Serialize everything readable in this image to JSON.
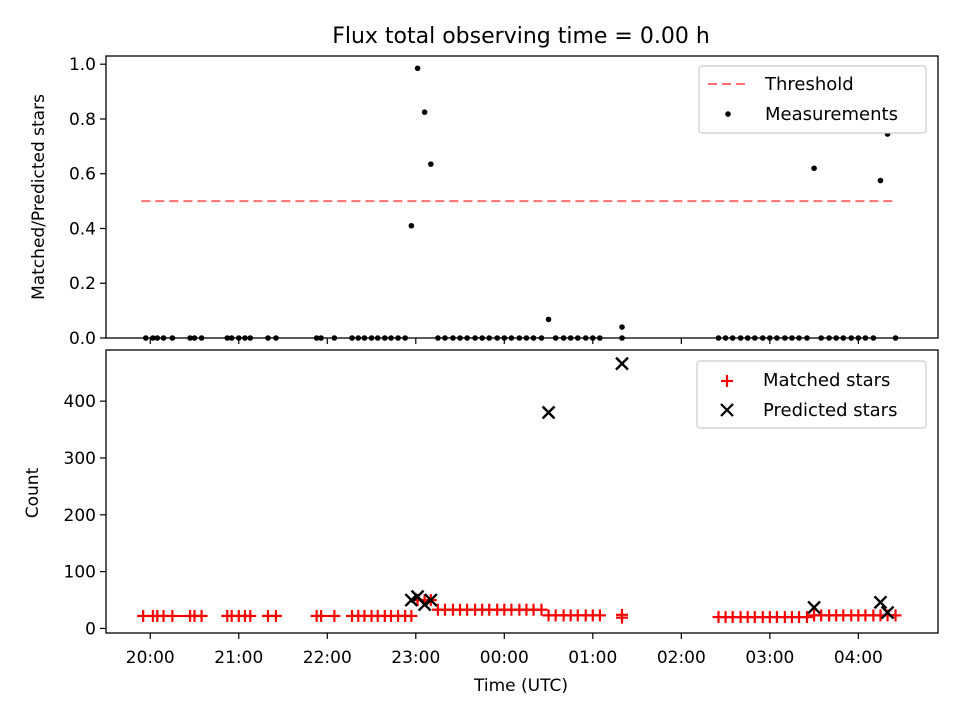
{
  "chart_data": [
    {
      "type": "scatter",
      "title": "Flux total observing time = 0.00 h",
      "xlabel": "",
      "ylabel": "Matched/Predicted stars",
      "ylim": [
        0,
        1.03
      ],
      "yticks": [
        "0.0",
        "0.2",
        "0.4",
        "0.6",
        "0.8",
        "1.0"
      ],
      "threshold": {
        "name": "Threshold",
        "value": 0.5,
        "x_range": [
          -0.1,
          8.4
        ],
        "color": "#ff7070"
      },
      "legend_position": "top-right",
      "series": [
        {
          "name": "Measurements",
          "color": "#000000",
          "points": [
            [
              -0.05,
              0
            ],
            [
              0.03,
              0
            ],
            [
              0.08,
              0
            ],
            [
              0.15,
              0
            ],
            [
              0.25,
              0
            ],
            [
              0.45,
              0
            ],
            [
              0.5,
              0
            ],
            [
              0.58,
              0
            ],
            [
              0.87,
              0
            ],
            [
              0.92,
              0
            ],
            [
              1.0,
              0
            ],
            [
              1.07,
              0
            ],
            [
              1.13,
              0
            ],
            [
              1.33,
              0
            ],
            [
              1.42,
              0
            ],
            [
              1.88,
              0
            ],
            [
              1.93,
              0
            ],
            [
              2.08,
              0
            ],
            [
              2.28,
              0
            ],
            [
              2.35,
              0
            ],
            [
              2.42,
              0
            ],
            [
              2.5,
              0
            ],
            [
              2.57,
              0
            ],
            [
              2.65,
              0
            ],
            [
              2.72,
              0
            ],
            [
              2.8,
              0
            ],
            [
              2.88,
              0
            ],
            [
              2.95,
              0.41
            ],
            [
              3.02,
              0.985
            ],
            [
              3.1,
              0.825
            ],
            [
              3.17,
              0.635
            ],
            [
              3.25,
              0
            ],
            [
              3.33,
              0
            ],
            [
              3.42,
              0
            ],
            [
              3.5,
              0
            ],
            [
              3.58,
              0
            ],
            [
              3.67,
              0
            ],
            [
              3.75,
              0
            ],
            [
              3.83,
              0
            ],
            [
              3.92,
              0
            ],
            [
              4.0,
              0
            ],
            [
              4.08,
              0
            ],
            [
              4.17,
              0
            ],
            [
              4.25,
              0
            ],
            [
              4.33,
              0
            ],
            [
              4.42,
              0
            ],
            [
              4.5,
              0.068
            ],
            [
              4.58,
              0
            ],
            [
              4.67,
              0
            ],
            [
              4.75,
              0
            ],
            [
              4.83,
              0
            ],
            [
              4.92,
              0
            ],
            [
              5.0,
              0
            ],
            [
              5.08,
              0
            ],
            [
              5.33,
              0.04
            ],
            [
              5.33,
              0
            ],
            [
              6.42,
              0
            ],
            [
              6.5,
              0
            ],
            [
              6.58,
              0
            ],
            [
              6.67,
              0
            ],
            [
              6.75,
              0
            ],
            [
              6.83,
              0
            ],
            [
              6.92,
              0
            ],
            [
              7.0,
              0
            ],
            [
              7.08,
              0
            ],
            [
              7.17,
              0
            ],
            [
              7.25,
              0
            ],
            [
              7.33,
              0
            ],
            [
              7.42,
              0
            ],
            [
              7.5,
              0.62
            ],
            [
              7.58,
              0
            ],
            [
              7.67,
              0
            ],
            [
              7.75,
              0
            ],
            [
              7.83,
              0
            ],
            [
              7.92,
              0
            ],
            [
              8.0,
              0
            ],
            [
              8.08,
              0
            ],
            [
              8.17,
              0
            ],
            [
              8.25,
              0.575
            ],
            [
              8.33,
              0.745
            ],
            [
              8.42,
              0
            ]
          ]
        }
      ]
    },
    {
      "type": "scatter",
      "title": "",
      "xlabel": "Time (UTC)",
      "ylabel": "Count",
      "ylim": [
        -8,
        490
      ],
      "yticks": [
        "0",
        "100",
        "200",
        "300",
        "400"
      ],
      "xlim": [
        -0.5,
        8.9
      ],
      "xtick_positions": [
        0,
        1,
        2,
        3,
        4,
        5,
        6,
        7,
        8
      ],
      "xtick_labels": [
        "20:00",
        "21:00",
        "22:00",
        "23:00",
        "00:00",
        "01:00",
        "02:00",
        "03:00",
        "04:00"
      ],
      "legend_position": "top-right",
      "matched_segments": [
        {
          "x": [
            -0.08,
            0.03,
            0.08,
            0.15,
            0.25,
            0.45,
            0.5,
            0.58
          ],
          "y": 22
        },
        {
          "x": [
            0.87,
            0.92,
            1.0,
            1.07,
            1.13
          ],
          "y": 22
        },
        {
          "x": [
            1.33,
            1.42
          ],
          "y": 22
        },
        {
          "x": [
            1.88,
            1.93,
            2.08
          ],
          "y": 22
        },
        {
          "x": [
            2.28,
            2.35,
            2.42,
            2.5,
            2.57,
            2.65,
            2.72,
            2.8,
            2.88,
            2.95
          ],
          "y": 22
        },
        {
          "x": [
            3.02,
            3.1,
            3.17
          ],
          "y": 50
        },
        {
          "x": [
            3.25,
            3.33,
            3.42,
            3.5,
            3.58,
            3.67,
            3.75,
            3.83,
            3.92,
            4.0,
            4.08,
            4.17,
            4.25,
            4.33,
            4.42
          ],
          "y": 33
        },
        {
          "x": [
            4.5,
            4.58,
            4.67,
            4.75,
            4.83,
            4.92,
            5.0,
            5.08
          ],
          "y": 23
        },
        {
          "x": [
            5.33
          ],
          "y": 24
        },
        {
          "x": [
            5.33
          ],
          "y": 19
        },
        {
          "x": [
            6.42,
            6.5,
            6.58,
            6.67,
            6.75,
            6.83,
            6.92,
            7.0,
            7.08,
            7.17,
            7.25,
            7.33,
            7.42
          ],
          "y": 20
        },
        {
          "x": [
            7.5,
            7.58,
            7.67,
            7.75,
            7.83,
            7.92,
            8.0,
            8.08,
            8.17,
            8.25,
            8.33,
            8.42
          ],
          "y": 23
        }
      ],
      "series": [
        {
          "name": "Matched stars",
          "marker": "+",
          "color": "#ff0000"
        },
        {
          "name": "Predicted stars",
          "marker": "x",
          "color": "#000000",
          "points": [
            [
              2.95,
              50
            ],
            [
              3.02,
              56
            ],
            [
              3.1,
              42
            ],
            [
              3.17,
              50
            ],
            [
              4.5,
              380
            ],
            [
              5.33,
              466
            ],
            [
              7.5,
              37
            ],
            [
              8.25,
              46
            ],
            [
              8.33,
              28
            ]
          ]
        }
      ]
    }
  ]
}
